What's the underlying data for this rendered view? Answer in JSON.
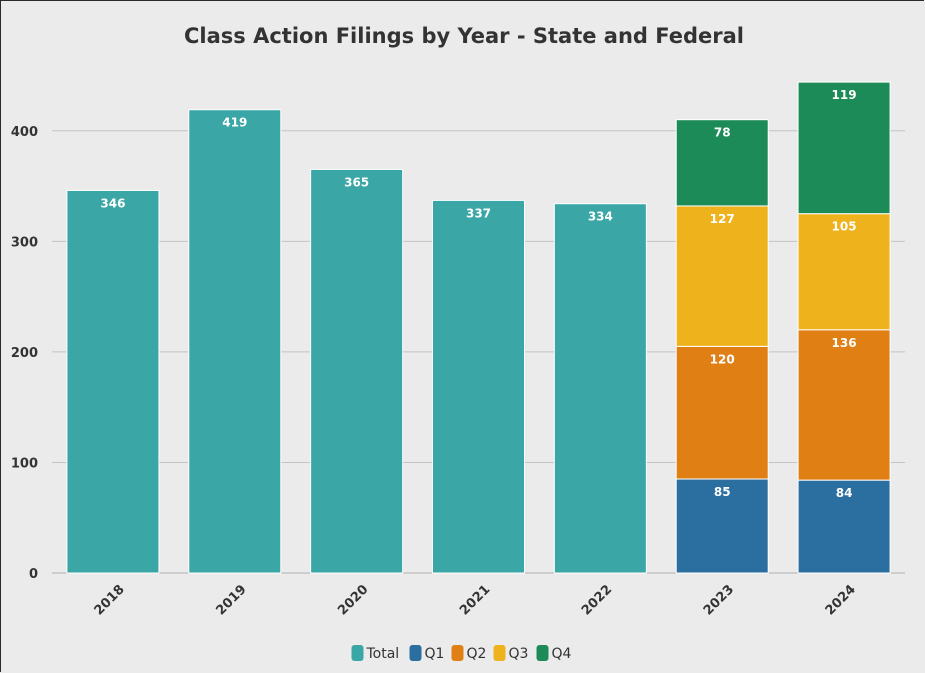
{
  "chart_data": {
    "type": "bar",
    "stacked": true,
    "title": "Class Action Filings by Year - State and Federal",
    "categories": [
      "2018",
      "2019",
      "2020",
      "2021",
      "2022",
      "2023",
      "2024"
    ],
    "series": [
      {
        "name": "Total",
        "color": "#3aa6a6",
        "values": [
          346,
          419,
          365,
          337,
          334,
          null,
          null
        ]
      },
      {
        "name": "Q1",
        "color": "#2a6f9f",
        "values": [
          null,
          null,
          null,
          null,
          null,
          85,
          84
        ]
      },
      {
        "name": "Q2",
        "color": "#e07f14",
        "values": [
          null,
          null,
          null,
          null,
          null,
          120,
          136
        ]
      },
      {
        "name": "Q3",
        "color": "#eeb21c",
        "values": [
          null,
          null,
          null,
          null,
          null,
          127,
          105
        ]
      },
      {
        "name": "Q4",
        "color": "#1d8b57",
        "values": [
          null,
          null,
          null,
          null,
          null,
          78,
          119
        ]
      }
    ],
    "yticks": [
      0,
      100,
      200,
      300,
      400
    ],
    "ylim": [
      0,
      445
    ],
    "grid": true,
    "legend_position": "bottom"
  }
}
